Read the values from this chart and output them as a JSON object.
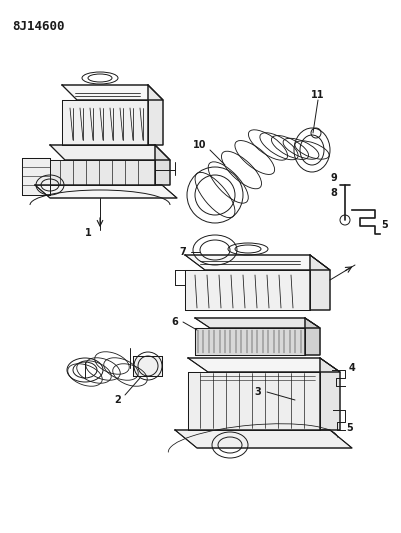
{
  "title": "8J14600",
  "bg_color": "#ffffff",
  "line_color": "#1a1a1a",
  "figsize": [
    4.01,
    5.33
  ],
  "dpi": 100,
  "lw": 0.7
}
